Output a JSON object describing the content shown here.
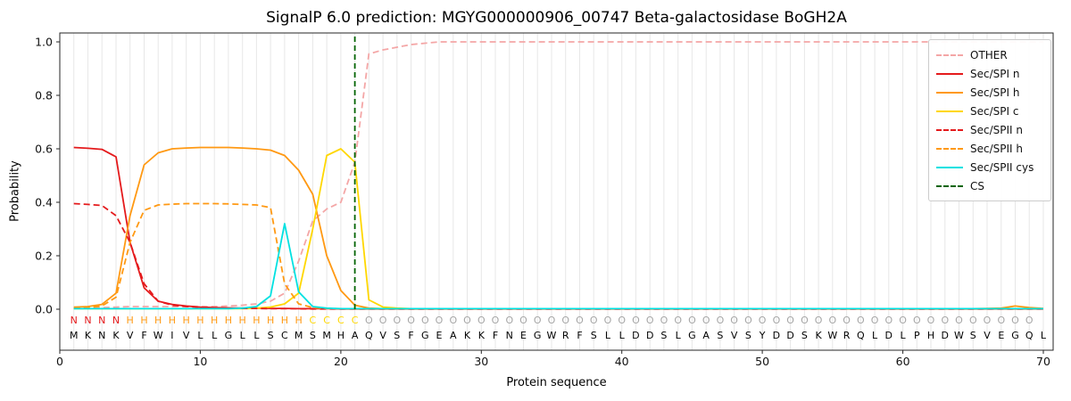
{
  "colors": {
    "N": "#e41a1c",
    "H": "#ff9913",
    "C": "#ffd700",
    "O": "#a6a6a6",
    "aa": "#000000",
    "grid": "#e7e7e7",
    "spine": "#262626"
  },
  "chart_data": {
    "type": "line",
    "title": "SignalP 6.0 prediction: MGYG000000906_00747 Beta-galactosidase BoGH2A",
    "xlabel": "Protein sequence",
    "ylabel": "Probability",
    "xlim": [
      0,
      70.7
    ],
    "ylim": [
      -0.15,
      1.03
    ],
    "xticks": [
      0,
      10,
      20,
      30,
      40,
      50,
      60,
      70
    ],
    "yticks": [
      "0.0",
      "0.2",
      "0.4",
      "0.6",
      "0.8",
      "1.0"
    ],
    "grid": "vertical line at every residue position",
    "legend_position": "upper right",
    "cs_position": 21,
    "sequence": "MKNKVFWIVLLGLLSCMSMHAQVSFGEAKKFNEGWRFSLLDDSLGASVSYDDSKWRQLDLPHDWSVEGQL",
    "region_labels": "NNNNHHHHHHHHHHHHHCCCCOOOOOOOOOOOOOOOOOOOOOOOOOOOOOOOOOOOOOOOOOOOOOOOO",
    "series": [
      {
        "name": "OTHER",
        "color": "#f4a6a6",
        "style": "dashed",
        "values": [
          0.005,
          0.005,
          0.006,
          0.008,
          0.01,
          0.01,
          0.01,
          0.01,
          0.01,
          0.01,
          0.01,
          0.012,
          0.015,
          0.02,
          0.03,
          0.06,
          0.18,
          0.33,
          0.375,
          0.4,
          0.55,
          0.955,
          0.97,
          0.98,
          0.99,
          0.995,
          1.0,
          1.0,
          1.0,
          1.0,
          1.0,
          1.0,
          1.0,
          1.0,
          1.0,
          1.0,
          1.0,
          1.0,
          1.0,
          1.0,
          1.0,
          1.0,
          1.0,
          1.0,
          1.0,
          1.0,
          1.0,
          1.0,
          1.0,
          1.0,
          1.0,
          1.0,
          1.0,
          1.0,
          1.0,
          1.0,
          1.0,
          1.0,
          1.0,
          1.0,
          1.0,
          1.0,
          1.0,
          1.0,
          1.0,
          1.0,
          1.0,
          1.0,
          1.0,
          1.0
        ]
      },
      {
        "name": "Sec/SPI n",
        "color": "#e41a1c",
        "style": "solid",
        "values": [
          0.605,
          0.602,
          0.598,
          0.57,
          0.25,
          0.08,
          0.03,
          0.018,
          0.012,
          0.008,
          0.006,
          0.005,
          0.004,
          0.004,
          0.003,
          0.003,
          0.002,
          0.002,
          0.002,
          0.001,
          0.001,
          0.001,
          0.001,
          0.001,
          0.001,
          0.001,
          0.001,
          0.001,
          0.001,
          0.001,
          0.001,
          0.001,
          0.001,
          0.001,
          0.001,
          0.001,
          0.001,
          0.001,
          0.001,
          0.001,
          0.001,
          0.001,
          0.001,
          0.001,
          0.001,
          0.001,
          0.001,
          0.001,
          0.001,
          0.001,
          0.001,
          0.001,
          0.001,
          0.001,
          0.001,
          0.001,
          0.001,
          0.001,
          0.001,
          0.001,
          0.001,
          0.001,
          0.001,
          0.001,
          0.001,
          0.001,
          0.001,
          0.001,
          0.001,
          0.001
        ]
      },
      {
        "name": "Sec/SPI h",
        "color": "#ff9913",
        "style": "solid",
        "values": [
          0.008,
          0.01,
          0.018,
          0.06,
          0.35,
          0.54,
          0.585,
          0.6,
          0.603,
          0.605,
          0.605,
          0.605,
          0.603,
          0.6,
          0.595,
          0.575,
          0.52,
          0.43,
          0.2,
          0.07,
          0.015,
          0.004,
          0.002,
          0.002,
          0.002,
          0.002,
          0.002,
          0.002,
          0.002,
          0.002,
          0.002,
          0.002,
          0.002,
          0.002,
          0.002,
          0.002,
          0.002,
          0.002,
          0.002,
          0.002,
          0.002,
          0.002,
          0.002,
          0.002,
          0.002,
          0.002,
          0.002,
          0.002,
          0.002,
          0.002,
          0.002,
          0.002,
          0.002,
          0.002,
          0.002,
          0.002,
          0.002,
          0.002,
          0.002,
          0.002,
          0.002,
          0.002,
          0.002,
          0.002,
          0.002,
          0.003,
          0.004,
          0.012,
          0.006,
          0.003
        ]
      },
      {
        "name": "Sec/SPI c",
        "color": "#ffd700",
        "style": "solid",
        "values": [
          0.002,
          0.002,
          0.002,
          0.002,
          0.002,
          0.002,
          0.002,
          0.002,
          0.002,
          0.002,
          0.002,
          0.002,
          0.002,
          0.004,
          0.008,
          0.02,
          0.06,
          0.3,
          0.575,
          0.6,
          0.55,
          0.035,
          0.008,
          0.004,
          0.002,
          0.002,
          0.002,
          0.002,
          0.002,
          0.002,
          0.002,
          0.002,
          0.002,
          0.002,
          0.002,
          0.002,
          0.002,
          0.002,
          0.002,
          0.002,
          0.002,
          0.002,
          0.002,
          0.002,
          0.002,
          0.002,
          0.002,
          0.002,
          0.002,
          0.002,
          0.002,
          0.002,
          0.002,
          0.002,
          0.002,
          0.002,
          0.002,
          0.002,
          0.002,
          0.002,
          0.002,
          0.002,
          0.002,
          0.002,
          0.002,
          0.002,
          0.002,
          0.002,
          0.002,
          0.002
        ]
      },
      {
        "name": "Sec/SPII n",
        "color": "#e41a1c",
        "style": "dashed",
        "values": [
          0.395,
          0.392,
          0.388,
          0.35,
          0.25,
          0.095,
          0.03,
          0.015,
          0.01,
          0.007,
          0.005,
          0.004,
          0.003,
          0.003,
          0.002,
          0.002,
          0.002,
          0.001,
          0.001,
          0.001,
          0.001,
          0.001,
          0.001,
          0.001,
          0.001,
          0.001,
          0.001,
          0.001,
          0.001,
          0.001,
          0.001,
          0.001,
          0.001,
          0.001,
          0.001,
          0.001,
          0.001,
          0.001,
          0.001,
          0.001,
          0.001,
          0.001,
          0.001,
          0.001,
          0.001,
          0.001,
          0.001,
          0.001,
          0.001,
          0.001,
          0.001,
          0.001,
          0.001,
          0.001,
          0.001,
          0.001,
          0.001,
          0.001,
          0.001,
          0.001,
          0.001,
          0.001,
          0.001,
          0.001,
          0.001,
          0.001,
          0.001,
          0.001,
          0.001,
          0.001
        ]
      },
      {
        "name": "Sec/SPII h",
        "color": "#ff9913",
        "style": "dashed",
        "values": [
          0.004,
          0.006,
          0.012,
          0.045,
          0.25,
          0.37,
          0.39,
          0.393,
          0.395,
          0.395,
          0.395,
          0.394,
          0.392,
          0.39,
          0.38,
          0.095,
          0.02,
          0.006,
          0.003,
          0.002,
          0.002,
          0.002,
          0.002,
          0.002,
          0.002,
          0.002,
          0.002,
          0.002,
          0.002,
          0.002,
          0.002,
          0.002,
          0.002,
          0.002,
          0.002,
          0.002,
          0.002,
          0.002,
          0.002,
          0.002,
          0.002,
          0.002,
          0.002,
          0.002,
          0.002,
          0.002,
          0.002,
          0.002,
          0.002,
          0.002,
          0.002,
          0.002,
          0.002,
          0.002,
          0.002,
          0.002,
          0.002,
          0.002,
          0.002,
          0.002,
          0.002,
          0.002,
          0.002,
          0.002,
          0.002,
          0.002,
          0.002,
          0.002,
          0.002,
          0.002
        ]
      },
      {
        "name": "Sec/SPII cys",
        "color": "#00e1e1",
        "style": "solid",
        "values": [
          0.002,
          0.002,
          0.002,
          0.002,
          0.002,
          0.002,
          0.002,
          0.002,
          0.002,
          0.002,
          0.002,
          0.002,
          0.004,
          0.01,
          0.05,
          0.32,
          0.065,
          0.01,
          0.004,
          0.002,
          0.002,
          0.002,
          0.002,
          0.002,
          0.002,
          0.002,
          0.002,
          0.002,
          0.002,
          0.002,
          0.002,
          0.002,
          0.002,
          0.002,
          0.002,
          0.002,
          0.002,
          0.002,
          0.002,
          0.002,
          0.002,
          0.002,
          0.002,
          0.002,
          0.002,
          0.002,
          0.002,
          0.002,
          0.002,
          0.002,
          0.002,
          0.002,
          0.002,
          0.002,
          0.002,
          0.002,
          0.002,
          0.002,
          0.002,
          0.002,
          0.002,
          0.002,
          0.002,
          0.002,
          0.002,
          0.002,
          0.002,
          0.002,
          0.002,
          0.002
        ]
      },
      {
        "name": "CS",
        "color": "#006400",
        "style": "dashed",
        "vline": 21
      }
    ]
  }
}
